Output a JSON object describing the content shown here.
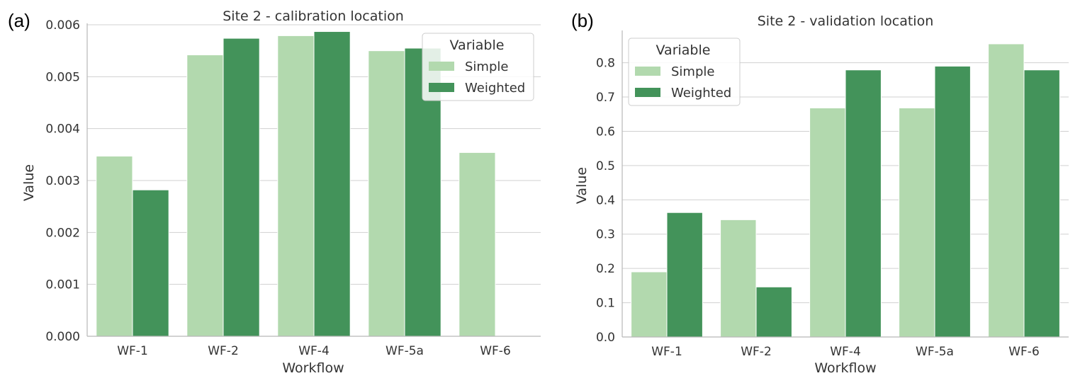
{
  "chart_data": [
    {
      "type": "bar",
      "panel_label": "(a)",
      "title": "Site 2 - calibration location",
      "xlabel": "Workflow",
      "ylabel": "Value",
      "categories": [
        "WF-1",
        "WF-2",
        "WF-4",
        "WF-5a",
        "WF-6"
      ],
      "series": [
        {
          "name": "Simple",
          "color": "#b2d9ae",
          "values": [
            0.00347,
            0.00542,
            0.00579,
            0.0055,
            0.00354
          ]
        },
        {
          "name": "Weighted",
          "color": "#43935a",
          "values": [
            0.00282,
            0.00574,
            0.00587,
            0.00555,
            null
          ]
        }
      ],
      "ylim": [
        0,
        0.006
      ],
      "yticks": [
        "0.000",
        "0.001",
        "0.002",
        "0.003",
        "0.004",
        "0.005",
        "0.006"
      ],
      "grid": "horizontal",
      "legend": {
        "title": "Variable",
        "position": "top-right"
      }
    },
    {
      "type": "bar",
      "panel_label": "(b)",
      "title": "Site 2 - validation location",
      "xlabel": "Workflow",
      "ylabel": "Value",
      "categories": [
        "WF-1",
        "WF-2",
        "WF-4",
        "WF-5a",
        "WF-6"
      ],
      "series": [
        {
          "name": "Simple",
          "color": "#b2d9ae",
          "values": [
            0.19,
            0.342,
            0.668,
            0.668,
            0.855
          ]
        },
        {
          "name": "Weighted",
          "color": "#43935a",
          "values": [
            0.363,
            0.146,
            0.779,
            0.79,
            0.779
          ]
        }
      ],
      "ylim": [
        0,
        0.89
      ],
      "yticks": [
        "0.0",
        "0.1",
        "0.2",
        "0.3",
        "0.4",
        "0.5",
        "0.6",
        "0.7",
        "0.8"
      ],
      "grid": "horizontal",
      "legend": {
        "title": "Variable",
        "position": "top-left"
      }
    }
  ]
}
